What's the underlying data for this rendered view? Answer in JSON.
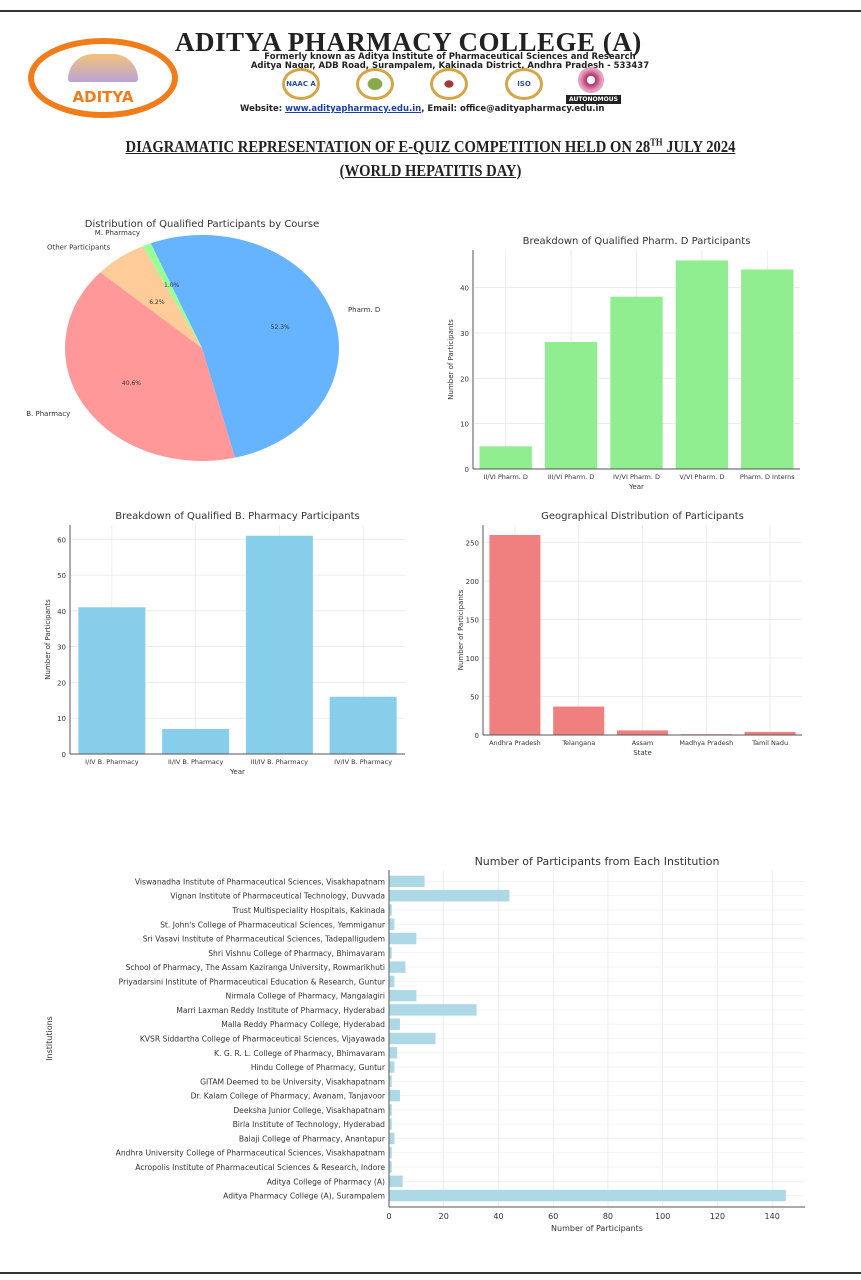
{
  "header": {
    "college_name": "ADITYA PHARMACY COLLEGE (A)",
    "formerly": "Formerly known as Aditya Institute of Pharmaceutical Sciences and Research",
    "address": "Aditya Nagar, ADB Road, Surampalem, Kakinada District, Andhra Pradesh - 533437",
    "website_label": "Website: ",
    "website": "www.adityapharmacy.edu.in",
    "email_label": ", Email: office@adityapharmacy.edu.in",
    "logo_text": "ADITYA",
    "seals": [
      "NAAC A",
      "",
      "",
      "ISO"
    ],
    "autonomous": "AUTONOMOUS",
    "brand_color": "#f07d1a"
  },
  "document": {
    "title_part1": "DIAGRAMATIC REPRESENTATION OF E-QUIZ COMPETITION HELD ON 28",
    "title_sup": "TH",
    "title_part2": " JULY 2024",
    "subtitle": "(WORLD HEPATITIS DAY)"
  },
  "chart_data": [
    {
      "type": "pie",
      "title": "Distribution of Qualified Participants by Course",
      "labels": [
        "Pharm. D",
        "B. Pharmacy",
        "Other Participants",
        "M. Pharmacy"
      ],
      "values": [
        52.3,
        40.6,
        6.2,
        1.0
      ],
      "pct_labels": [
        "52.3%",
        "40.6%",
        "6.2%",
        "1.0%"
      ],
      "colors": [
        "#66b3ff",
        "#ff9999",
        "#ffcc99",
        "#99ff99"
      ]
    },
    {
      "type": "bar",
      "title": "Breakdown of Qualified Pharm. D Participants",
      "xlabel": "Year",
      "ylabel": "Number of Participants",
      "categories": [
        "II/VI Pharm. D",
        "III/VI Pharm. D",
        "IV/VI Pharm. D",
        "V/VI Pharm. D",
        "Pharm. D Interns"
      ],
      "values": [
        5,
        28,
        38,
        46,
        44
      ],
      "ylim": [
        0,
        48.3
      ],
      "yticks": [
        0,
        10,
        20,
        30,
        40
      ],
      "grid": true,
      "color": "#90ee90"
    },
    {
      "type": "bar",
      "title": "Breakdown of Qualified B. Pharmacy Participants",
      "xlabel": "Year",
      "ylabel": "Number of Participants",
      "categories": [
        "I/IV B. Pharmacy",
        "II/IV B. Pharmacy",
        "III/IV B. Pharmacy",
        "IV/IV B. Pharmacy"
      ],
      "values": [
        41,
        7,
        61,
        16
      ],
      "ylim": [
        0,
        64
      ],
      "yticks": [
        0,
        10,
        20,
        30,
        40,
        50,
        60
      ],
      "grid": true,
      "color": "#87ceeb"
    },
    {
      "type": "bar",
      "title": "Geographical Distribution of Participants",
      "xlabel": "State",
      "ylabel": "Number of Participants",
      "categories": [
        "Andhra Pradesh",
        "Telangana",
        "Assam",
        "Madhya Pradesh",
        "Tamil Nadu"
      ],
      "values": [
        260,
        37,
        6,
        1,
        4
      ],
      "ylim": [
        0,
        273
      ],
      "yticks": [
        0,
        50,
        100,
        150,
        200,
        250
      ],
      "grid": true,
      "color": "#f08080"
    },
    {
      "type": "bar",
      "orientation": "horizontal",
      "title": "Number of Participants from Each Institution",
      "xlabel": "Number of Participants",
      "ylabel": "Institutions",
      "categories": [
        "Viswanadha Institute of Pharmaceutical Sciences, Visakhapatnam",
        "Vignan Institute of Pharmaceutical Technology, Duvvada",
        "Trust Multispeciality Hospitals, Kakinada",
        "St. John's College of Pharmaceutical Sciences, Yemmiganur",
        "Sri Vasavi Institute of Pharmaceutical Sciences, Tadepalligudem",
        "Shri Vishnu College of Pharmacy, Bhimavaram",
        "School of Pharmacy, The Assam Kaziranga University, Rowmarikhuti",
        "Priyadarsini Institute of Pharmaceutical Education & Research, Guntur",
        "Nirmala College of Pharmacy, Mangalagiri",
        "Marri Laxman Reddy Institute of Pharmacy, Hyderabad",
        "Malla Reddy Pharmacy College, Hyderabad",
        "KVSR Siddartha College of Pharmaceutical Sciences, Vijayawada",
        "K. G. R. L. College of Pharmacy, Bhimavaram",
        "Hindu College of Pharmacy, Guntur",
        "GITAM Deemed to be University, Visakhapatnam",
        "Dr. Kalam College of Pharmacy, Avanam, Tanjavoor",
        "Deeksha Junior College, Visakhapatnam",
        "Birla Institute of Technology, Hyderabad",
        "Balaji College of Pharmacy, Anantapur",
        "Andhra University College of Pharmaceutical Sciences, Visakhapatnam",
        "Acropolis Institute of Pharmaceutical Sciences & Research, Indore",
        "Aditya College of Pharmacy (A)",
        "Aditya Pharmacy College (A), Surampalem"
      ],
      "values": [
        13,
        44,
        1,
        2,
        10,
        1,
        6,
        2,
        10,
        32,
        4,
        17,
        3,
        2,
        1,
        4,
        1,
        1,
        2,
        1,
        1,
        5,
        145
      ],
      "xlim": [
        0,
        152
      ],
      "xticks": [
        0,
        20,
        40,
        60,
        80,
        100,
        120,
        140
      ],
      "grid": true,
      "color": "#add8e6"
    }
  ]
}
